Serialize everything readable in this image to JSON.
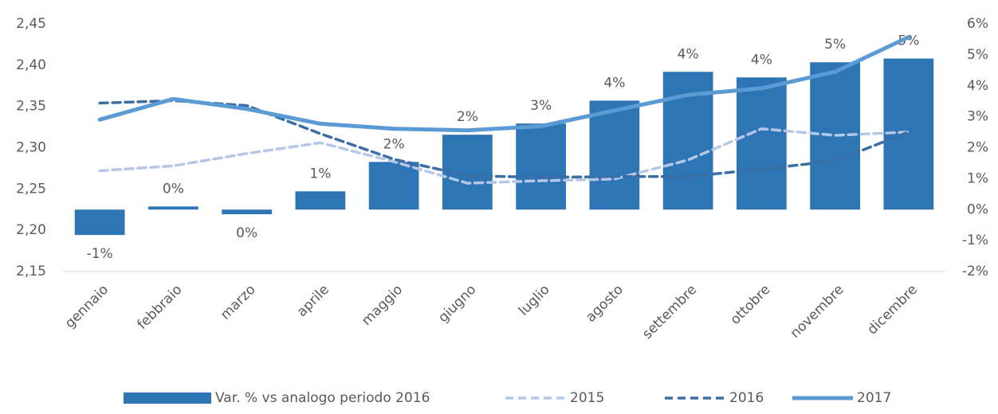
{
  "chart_data": {
    "type": "combo",
    "categories": [
      "gennaio",
      "febbraio",
      "marzo",
      "aprile",
      "maggio",
      "giugno",
      "luglio",
      "agosto",
      "settembre",
      "ottobre",
      "novembre",
      "dicembre"
    ],
    "series": [
      {
        "name": "Var. % vs analogo periodo 2016",
        "type": "bar",
        "axis": "y2",
        "color": "#2e75b6",
        "values": [
          -0.82,
          0.1,
          -0.15,
          0.59,
          1.54,
          2.42,
          2.78,
          3.52,
          4.45,
          4.27,
          4.76,
          4.88
        ],
        "value_labels": [
          "-1%",
          "0%",
          "0%",
          "1%",
          "2%",
          "2%",
          "3%",
          "4%",
          "4%",
          "4%",
          "5%",
          "5%"
        ]
      },
      {
        "name": "2015",
        "type": "line",
        "axis": "y",
        "color": "#b4c7e7",
        "style": "dashed",
        "values": [
          2.272,
          2.278,
          2.293,
          2.306,
          2.283,
          2.257,
          2.26,
          2.262,
          2.285,
          2.323,
          2.315,
          2.319
        ]
      },
      {
        "name": "2016",
        "type": "line",
        "axis": "y",
        "color": "#3a6ea5",
        "style": "dashed",
        "values": [
          2.354,
          2.357,
          2.351,
          2.317,
          2.286,
          2.266,
          2.264,
          2.265,
          2.265,
          2.274,
          2.284,
          2.319
        ]
      },
      {
        "name": "2017",
        "type": "line",
        "axis": "y",
        "color": "#5b9bd5",
        "style": "solid",
        "values": [
          2.334,
          2.359,
          2.347,
          2.329,
          2.323,
          2.321,
          2.326,
          2.345,
          2.364,
          2.372,
          2.392,
          2.434
        ]
      }
    ],
    "ylim": [
      2.15,
      2.45
    ],
    "yticks": [
      {
        "value": 2.15,
        "label": "2,15"
      },
      {
        "value": 2.2,
        "label": "2,20"
      },
      {
        "value": 2.25,
        "label": "2,25"
      },
      {
        "value": 2.3,
        "label": "2,30"
      },
      {
        "value": 2.35,
        "label": "2,35"
      },
      {
        "value": 2.4,
        "label": "2,40"
      },
      {
        "value": 2.45,
        "label": "2,45"
      }
    ],
    "y2lim": [
      -2,
      6
    ],
    "y2ticks": [
      {
        "value": -2,
        "label": "-2%"
      },
      {
        "value": -1,
        "label": "-1%"
      },
      {
        "value": 0,
        "label": "0%"
      },
      {
        "value": 1,
        "label": "1%"
      },
      {
        "value": 2,
        "label": "2%"
      },
      {
        "value": 3,
        "label": "3%"
      },
      {
        "value": 4,
        "label": "4%"
      },
      {
        "value": 5,
        "label": "5%"
      },
      {
        "value": 6,
        "label": "6%"
      }
    ],
    "legend": "bottom"
  }
}
